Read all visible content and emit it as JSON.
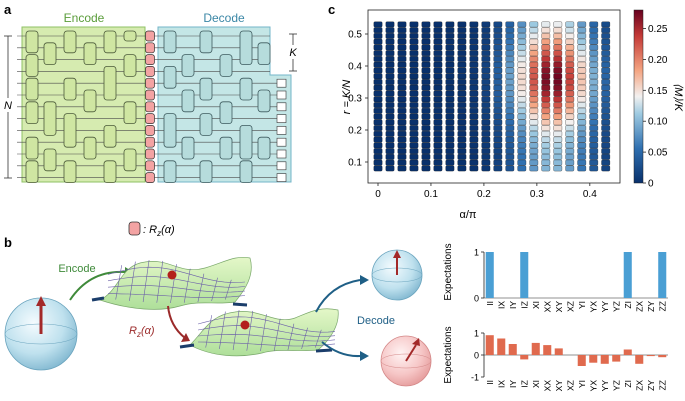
{
  "panels": {
    "a": {
      "letter": "a",
      "encode_label": "Encode",
      "decode_label": "Decode",
      "k_label": "K",
      "n_label": "N",
      "gate_legend": ": R",
      "gate_legend_sub": "z",
      "gate_legend_arg": "(α)",
      "colors": {
        "encode_fill": "#d6ebb0",
        "decode_fill": "#c4e6e6",
        "gate": "#f3a3a3",
        "encode_text": "#5a9c3a",
        "decode_text": "#3b87a6"
      }
    },
    "b": {
      "letter": "b",
      "encode_label": "Encode",
      "decode_label": "Decode",
      "rz_label": "R",
      "rz_sub": "z",
      "rz_arg": "(α)",
      "colors": {
        "surface": "#c9ecb2",
        "encode_arrow": "#3f8a3a",
        "rz_arrow": "#9b2a2a",
        "decode_arrow": "#1f5f86",
        "bar_top": "#4a9fd4",
        "bar_bottom": "#e06a4e"
      }
    },
    "c": {
      "letter": "c"
    }
  },
  "chart_data": [
    {
      "type": "heatmap",
      "title": "",
      "xlabel": "α/π",
      "ylabel": "r = K/N",
      "colorbar_label": "⟨M⟩/K",
      "x_ticks": [
        "0",
        "0.1",
        "0.2",
        "0.3",
        "0.4"
      ],
      "y_ticks": [
        "0.1",
        "0.2",
        "0.3",
        "0.4",
        "0.5"
      ],
      "colorbar_ticks": [
        "0",
        "0.05",
        "0.10",
        "0.15",
        "0.20",
        "0.25"
      ],
      "xlim": [
        0,
        0.44
      ],
      "ylim": [
        0.05,
        0.55
      ],
      "zlim": [
        0,
        0.28
      ],
      "columns": 20,
      "rows": 26,
      "pattern": "values peak (~0.28) near α/π ≈ 0.33 and r ≈ 0.3–0.4, falling to ~0 at α/π = 0"
    },
    {
      "type": "bar",
      "ylabel": "Expectations",
      "categories": [
        "II",
        "IX",
        "IY",
        "IZ",
        "XI",
        "XX",
        "XY",
        "XZ",
        "YI",
        "YX",
        "YY",
        "YZ",
        "ZI",
        "ZX",
        "ZY",
        "ZZ"
      ],
      "values": [
        1,
        0,
        0,
        1,
        0,
        0,
        0,
        0,
        0,
        0,
        0,
        0,
        1,
        0,
        0,
        1
      ],
      "ylim": [
        0,
        1
      ],
      "y_ticks": [
        "0",
        "1"
      ]
    },
    {
      "type": "bar",
      "ylabel": "Expectations",
      "categories": [
        "II",
        "IX",
        "IY",
        "IZ",
        "XI",
        "XX",
        "XY",
        "XZ",
        "YI",
        "YX",
        "YY",
        "YZ",
        "ZI",
        "ZX",
        "ZY",
        "ZZ"
      ],
      "values": [
        0.9,
        0.75,
        0.5,
        -0.2,
        0.55,
        0.45,
        0.3,
        0,
        -0.5,
        -0.35,
        -0.4,
        -0.3,
        0.25,
        -0.4,
        -0.05,
        -0.1
      ],
      "ylim": [
        -1,
        1
      ],
      "y_ticks": [
        "-1",
        "0",
        "1"
      ]
    }
  ]
}
